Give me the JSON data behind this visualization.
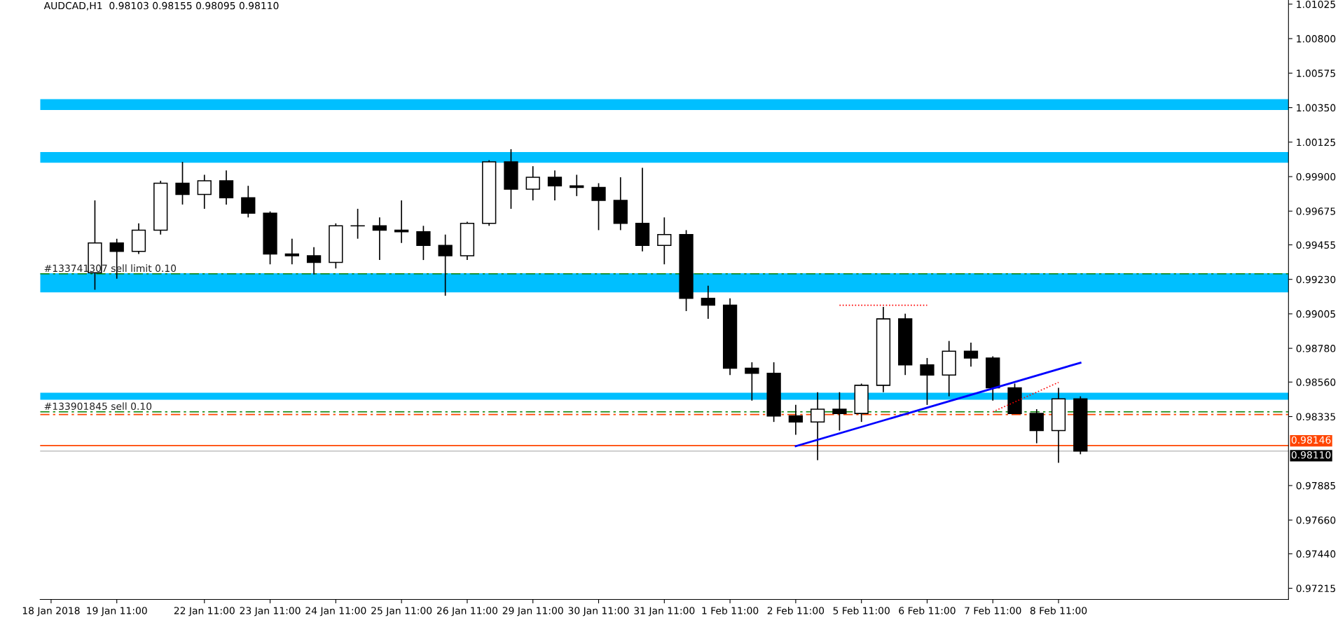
{
  "chart_data": {
    "type": "candlestick",
    "title": "AUDCAD,H1  0.98103 0.98155 0.98095 0.98110",
    "categories": [
      "18 Jan 2018",
      null,
      null,
      "19 Jan 11:00",
      null,
      null,
      null,
      "22 Jan 11:00",
      null,
      null,
      "23 Jan 11:00",
      null,
      null,
      "24 Jan 11:00",
      null,
      null,
      "25 Jan 11:00",
      null,
      null,
      "26 Jan 11:00",
      null,
      null,
      "29 Jan 11:00",
      null,
      null,
      "30 Jan 11:00",
      null,
      null,
      "31 Jan 11:00",
      null,
      null,
      "1 Feb 11:00",
      null,
      null,
      "2 Feb 11:00",
      null,
      null,
      "5 Feb 11:00",
      null,
      null,
      "6 Feb 11:00",
      null,
      null,
      "7 Feb 11:00",
      null,
      null,
      "8 Feb 11:00",
      null,
      null,
      null,
      null,
      null,
      null,
      null,
      null,
      null,
      null
    ],
    "ohlc": [
      null,
      null,
      [
        0.99273,
        0.99745,
        0.99162,
        0.99467
      ],
      [
        0.99467,
        0.99495,
        0.99234,
        0.99412
      ],
      [
        0.99412,
        0.99595,
        0.99395,
        0.99551
      ],
      [
        0.99551,
        0.99873,
        0.99522,
        0.99857
      ],
      [
        0.99857,
        0.99996,
        0.99718,
        0.99784
      ],
      [
        0.99784,
        0.99912,
        0.9969,
        0.99873
      ],
      [
        0.99873,
        0.9994,
        0.99718,
        0.99762
      ],
      [
        0.99762,
        0.9984,
        0.99634,
        0.99662
      ],
      [
        0.99662,
        0.99673,
        0.99328,
        0.99395
      ],
      [
        0.99395,
        0.99495,
        0.99328,
        0.99384
      ],
      [
        0.99384,
        0.9944,
        0.99262,
        0.9934
      ],
      [
        0.9934,
        0.99595,
        0.99301,
        0.99579
      ],
      [
        0.99579,
        0.9969,
        0.99495,
        0.99579
      ],
      [
        0.99579,
        0.99634,
        0.99356,
        0.99551
      ],
      [
        0.99551,
        0.99745,
        0.99467,
        0.9954
      ],
      [
        0.9954,
        0.99579,
        0.99356,
        0.99451
      ],
      [
        0.99451,
        0.99522,
        0.99123,
        0.99384
      ],
      [
        0.99384,
        0.99606,
        0.99356,
        0.99595
      ],
      [
        0.99595,
        1.00007,
        0.99579,
        0.99996
      ],
      [
        0.99996,
        1.00079,
        0.9969,
        0.99818
      ],
      [
        0.99818,
        0.99968,
        0.99745,
        0.99896
      ],
      [
        0.99896,
        0.9994,
        0.99745,
        0.9984
      ],
      [
        0.9984,
        0.99912,
        0.99773,
        0.99829
      ],
      [
        0.99829,
        0.99857,
        0.99551,
        0.99745
      ],
      [
        0.99745,
        0.99896,
        0.99551,
        0.99595
      ],
      [
        0.99595,
        0.99957,
        0.99412,
        0.99451
      ],
      [
        0.99451,
        0.99634,
        0.99328,
        0.99522
      ],
      [
        0.99522,
        0.99551,
        0.99023,
        0.99106
      ],
      [
        0.99106,
        0.99189,
        0.98972,
        0.99062
      ],
      [
        0.99062,
        0.99106,
        0.98606,
        0.9865
      ],
      [
        0.9865,
        0.98689,
        0.98439,
        0.98617
      ],
      [
        0.98617,
        0.98689,
        0.983,
        0.98339
      ],
      [
        0.98339,
        0.98411,
        0.98216,
        0.983
      ],
      [
        0.983,
        0.98494,
        0.9805,
        0.98383
      ],
      [
        0.98383,
        0.98494,
        0.98244,
        0.98355
      ],
      [
        0.98355,
        0.9855,
        0.983,
        0.98539
      ],
      [
        0.98539,
        0.9905,
        0.98494,
        0.98972
      ],
      [
        0.98972,
        0.99006,
        0.98606,
        0.98672
      ],
      [
        0.98672,
        0.98717,
        0.98411,
        0.98606
      ],
      [
        0.98606,
        0.98828,
        0.98467,
        0.98761
      ],
      [
        0.98761,
        0.98817,
        0.98661,
        0.98717
      ],
      [
        0.98717,
        0.98728,
        0.98439,
        0.98522
      ],
      [
        0.98522,
        0.9855,
        0.98355,
        0.98355
      ],
      [
        0.98355,
        0.98383,
        0.98161,
        0.98244
      ],
      [
        0.98244,
        0.98522,
        0.98033,
        0.9845
      ],
      [
        0.9845,
        0.98467,
        0.98089,
        0.9811
      ],
      null,
      null,
      null,
      null,
      null,
      null,
      null,
      null,
      null
    ],
    "series": [
      {
        "type": "line",
        "color": "#0000ff",
        "line_style": "solid",
        "values": [
          null,
          null,
          null,
          null,
          null,
          null,
          null,
          null,
          null,
          null,
          null,
          null,
          null,
          null,
          null,
          null,
          null,
          null,
          null,
          null,
          null,
          null,
          null,
          null,
          null,
          null,
          null,
          null,
          null,
          null,
          null,
          null,
          null,
          null,
          0.98142,
          null,
          null,
          null,
          null,
          null,
          null,
          null,
          null,
          null,
          null,
          null,
          null,
          0.98686,
          null,
          null,
          null,
          null,
          null,
          null,
          null,
          null,
          null
        ]
      },
      {
        "type": "line",
        "color": "#ff0000",
        "line_style": "dotted",
        "values": [
          null,
          null,
          null,
          null,
          null,
          null,
          null,
          null,
          null,
          null,
          null,
          null,
          null,
          null,
          null,
          null,
          null,
          null,
          null,
          null,
          null,
          null,
          null,
          null,
          null,
          null,
          null,
          null,
          null,
          null,
          null,
          null,
          null,
          null,
          null,
          null,
          0.99061,
          null,
          null,
          null,
          0.99061,
          null,
          null,
          null,
          null,
          null,
          null,
          null,
          null,
          null,
          null,
          null,
          null,
          null,
          null,
          null,
          null
        ]
      },
      {
        "type": "line",
        "color": "#ff0000",
        "line_style": "dotted",
        "values": [
          null,
          null,
          null,
          null,
          null,
          null,
          null,
          null,
          null,
          null,
          null,
          null,
          null,
          null,
          null,
          null,
          null,
          null,
          null,
          null,
          null,
          null,
          null,
          null,
          null,
          null,
          null,
          null,
          null,
          null,
          null,
          null,
          null,
          null,
          null,
          null,
          null,
          null,
          null,
          null,
          null,
          null,
          null,
          0.98366,
          null,
          null,
          0.98558,
          null,
          null,
          null,
          null,
          null,
          null,
          null,
          null,
          null,
          null
        ]
      }
    ],
    "ylim": [
      0.97142,
      1.01052
    ],
    "yticks": [
      1.01025,
      {
        "value": 1.008,
        "label": "1.00800"
      },
      1.00575,
      {
        "value": 1.0035,
        "label": "1.00350"
      },
      1.00125,
      {
        "value": 0.999,
        "label": "0.99900"
      },
      0.99675,
      0.99455,
      {
        "value": 0.9923,
        "label": "0.99230"
      },
      0.99005,
      {
        "value": 0.9878,
        "label": "0.98780"
      },
      {
        "value": 0.9856,
        "label": "0.98560"
      },
      0.98335,
      0.97885,
      {
        "value": 0.9766,
        "label": "0.97660"
      },
      {
        "value": 0.9744,
        "label": "0.97440"
      },
      0.97215
    ],
    "bands": [
      {
        "axis": "y",
        "from": 1.00335,
        "to": 1.00405,
        "color": "#00bfff"
      },
      {
        "axis": "y",
        "from": 0.9999,
        "to": 1.0006,
        "color": "#00bfff"
      },
      {
        "axis": "y",
        "from": 0.99145,
        "to": 0.9927,
        "color": "#00bfff"
      },
      {
        "axis": "y",
        "from": 0.98445,
        "to": 0.9849,
        "color": "#00bfff"
      }
    ],
    "ref_lines": [
      {
        "axis": "y",
        "value": 0.99266,
        "label": "#133741307 sell limit 0.10",
        "color": "#008000",
        "line_style": "dashed"
      },
      {
        "axis": "y",
        "value": 0.98366,
        "label": "#133901845 sell 0.10",
        "color": "#008000",
        "line_style": "dashed"
      },
      {
        "axis": "y",
        "value": 0.98348,
        "color": "#ff4500",
        "line_style": "dashed"
      },
      {
        "axis": "y",
        "value": 0.98146,
        "label": "0.98146",
        "color": "#ff4500",
        "line_style": "solid"
      },
      {
        "axis": "y",
        "value": 0.9811,
        "label": "0.98110",
        "color": "#c0c0c0",
        "line_style": "solid"
      }
    ],
    "grid": false,
    "legend": false
  }
}
